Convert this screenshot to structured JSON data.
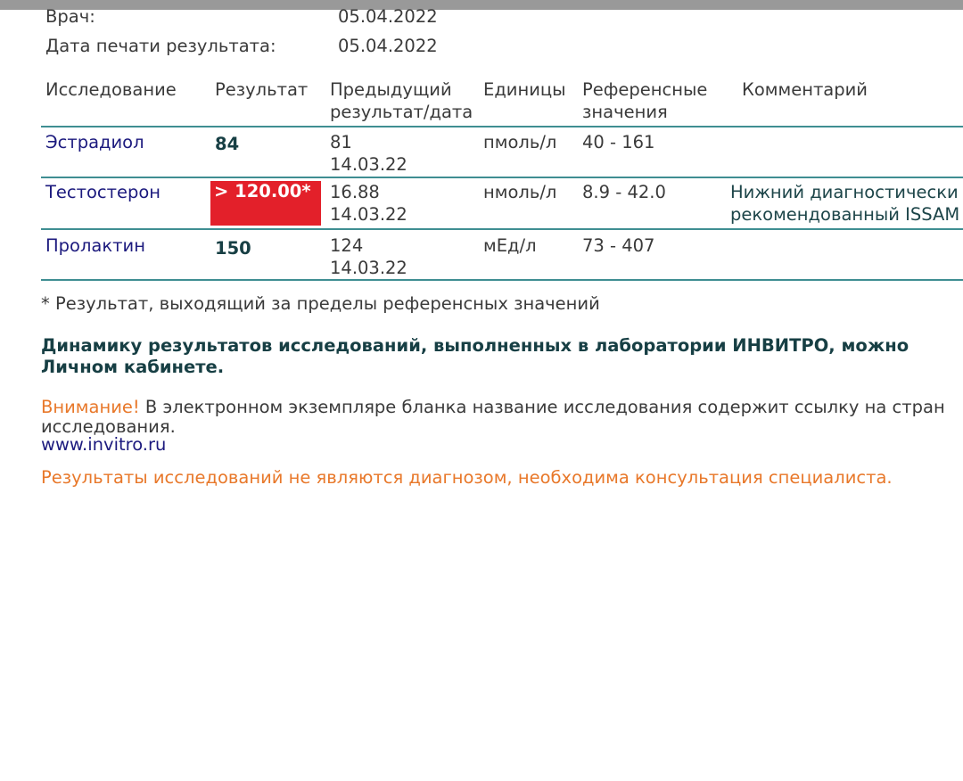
{
  "header_info": {
    "doctor_label": "Врач:",
    "doctor_date": "05.04.2022",
    "print_date_label": "Дата печати результата:",
    "print_date": "05.04.2022"
  },
  "table": {
    "columns": [
      "Исследование",
      "Результат",
      "Предыдущий",
      "результат/дата",
      "Единицы",
      "Референсные",
      "значения",
      "Комментарий"
    ],
    "rows": [
      {
        "test": "Эстрадиол",
        "result": "84",
        "flagged": false,
        "prev_value": "81",
        "prev_date": "14.03.22",
        "units": "пмоль/л",
        "reference": "40 - 161",
        "comment_1": "",
        "comment_2": ""
      },
      {
        "test": "Тестостерон",
        "result": "> 120.00*",
        "flagged": true,
        "prev_value": "16.88",
        "prev_date": "14.03.22",
        "units": "нмоль/л",
        "reference": "8.9 - 42.0",
        "comment_1": "Нижний диагностически",
        "comment_2": "рекомендованный ISSAM"
      },
      {
        "test": "Пролактин",
        "result": "150",
        "flagged": false,
        "prev_value": "124",
        "prev_date": "14.03.22",
        "units": "мЕд/л",
        "reference": "73 - 407",
        "comment_1": "",
        "comment_2": ""
      }
    ]
  },
  "footnote": "* Результат, выходящий за пределы референсных значений",
  "dynamics_1": "Динамику результатов исследований, выполненных в лаборатории ИНВИТРО, можно",
  "dynamics_2": "Личном кабинете.",
  "attention_label": "Внимание!",
  "attention_text": " В электронном экземпляре бланка название исследования содержит ссылку на стран",
  "attention_text_2": "исследования.",
  "link": "www.invitro.ru",
  "disclaimer": "Результаты исследований не являются диагнозом, необходима консультация специалиста.",
  "colors": {
    "flag": "#e3202a",
    "accent_line": "#3f8e92",
    "warning": "#e8782a",
    "test_name": "#1c1a7e"
  }
}
